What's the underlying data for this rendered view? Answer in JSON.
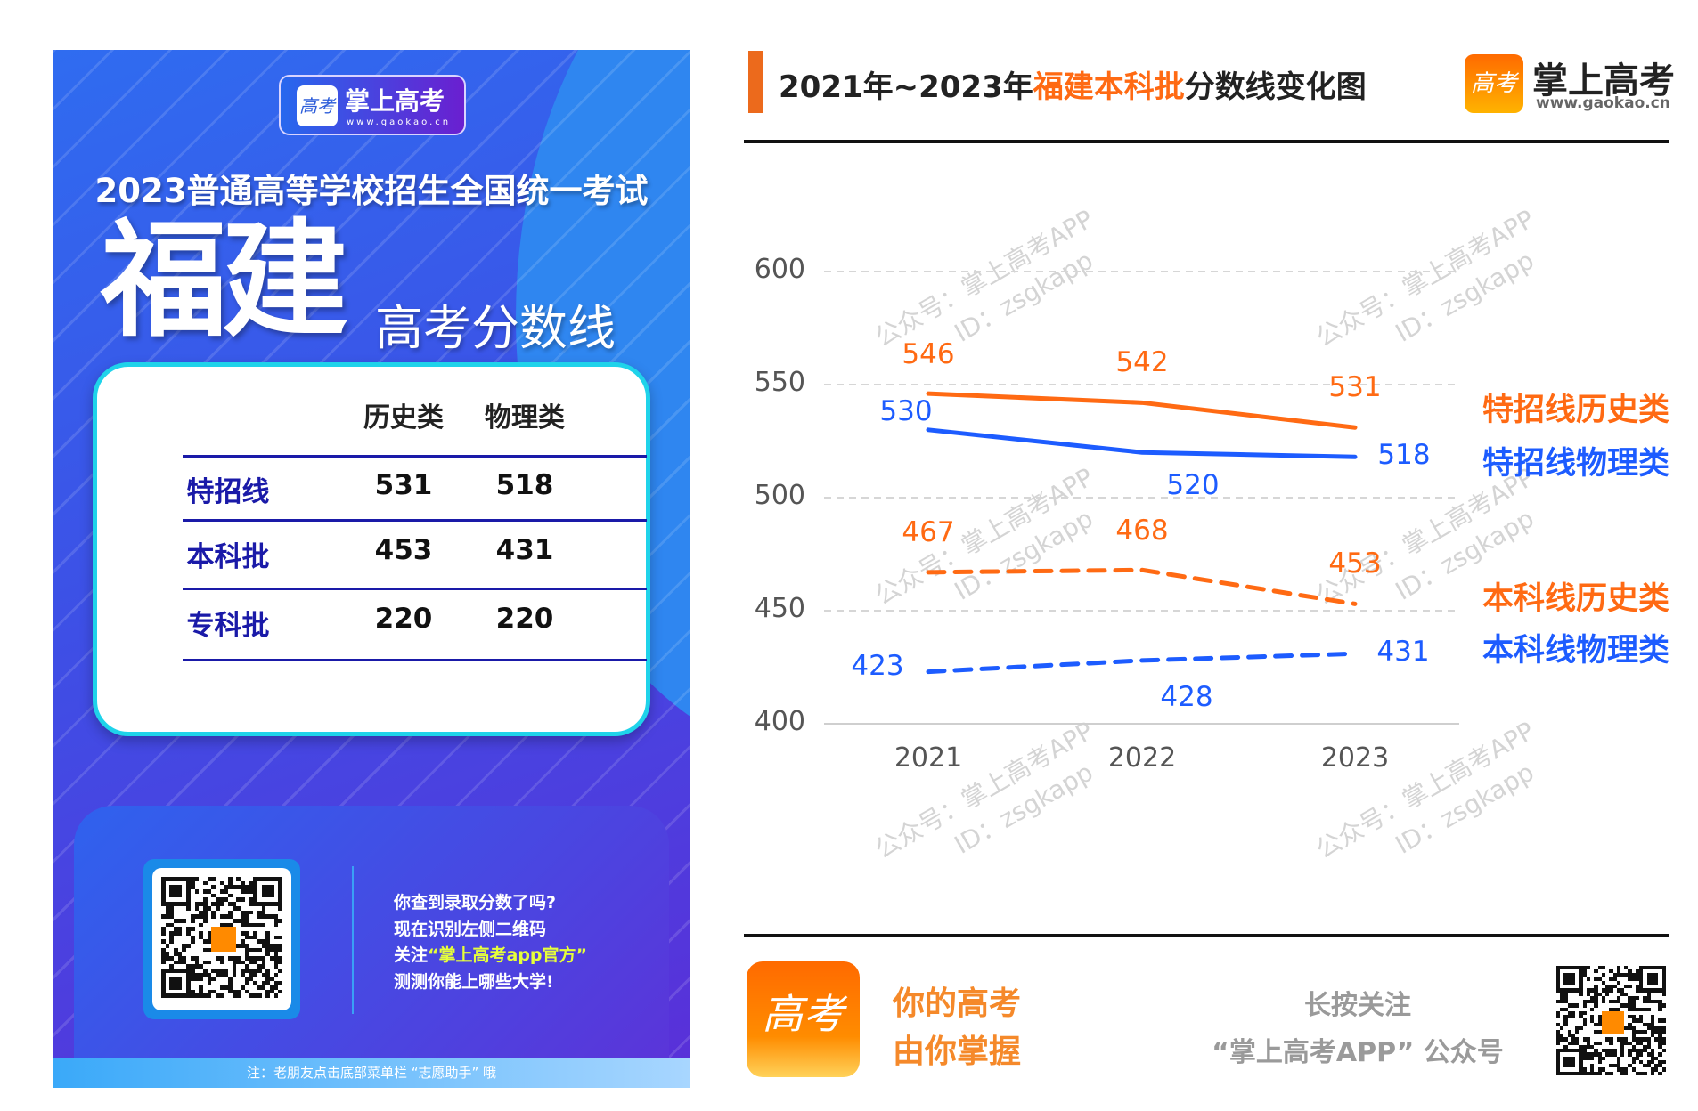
{
  "poster": {
    "logo_name": "掌上高考",
    "logo_url": "www.gaokao.cn",
    "logo_glyph": "高考",
    "headline": "2023普通高等学校招生全国统一考试",
    "province": "福建",
    "subtitle": "高考分数线",
    "table": {
      "headers": [
        "历史类",
        "物理类"
      ],
      "rows": [
        {
          "label": "特招线",
          "history": "531",
          "physics": "518"
        },
        {
          "label": "本科批",
          "history": "453",
          "physics": "431"
        },
        {
          "label": "专科批",
          "history": "220",
          "physics": "220"
        }
      ]
    },
    "promo": {
      "line1": "你查到录取分数了吗?",
      "line2": "现在识别左侧二维码",
      "line3_pre": "关注",
      "line3_hi": "“掌上高考app官方”",
      "line4": "测测你能上哪些大学!"
    },
    "footer": "注：老朋友点击底部菜单栏 “志愿助手” 哦"
  },
  "chart_header": {
    "title_pre": "2021年~2023年",
    "title_hi": "福建本科批",
    "title_post": "分数线变化图",
    "logo_name": "掌上高考",
    "logo_url": "www.gaokao.cn",
    "logo_glyph": "高考"
  },
  "watermark": {
    "line1": "公众号：掌上高考APP",
    "line2": "ID：zsgkapp"
  },
  "chart_data": {
    "type": "line",
    "title": "2021年~2023年福建本科批分数线变化图",
    "categories": [
      "2021",
      "2022",
      "2023"
    ],
    "ylim": [
      400,
      600
    ],
    "yticks": [
      600,
      550,
      500,
      450,
      400
    ],
    "grid": true,
    "legend": "right",
    "series": [
      {
        "name": "特招线历史类",
        "values": [
          546,
          542,
          531
        ],
        "color": "#ff6a13",
        "dash": false
      },
      {
        "name": "特招线物理类",
        "values": [
          530,
          520,
          518
        ],
        "color": "#1d5cff",
        "dash": false
      },
      {
        "name": "本科线历史类",
        "values": [
          467,
          468,
          453
        ],
        "color": "#ff6a13",
        "dash": true
      },
      {
        "name": "本科线物理类",
        "values": [
          423,
          428,
          431
        ],
        "color": "#1d5cff",
        "dash": true
      }
    ]
  },
  "bottom": {
    "slogan1": "你的高考",
    "slogan2": "由你掌握",
    "follow1": "长按关注",
    "follow2": "“掌上高考APP” 公众号",
    "logo_glyph": "高考"
  },
  "colors": {
    "orange": "#ff6a13",
    "blue": "#1d5cff",
    "poster_blue": "#2f6cf0",
    "navy": "#1a1aa8"
  }
}
